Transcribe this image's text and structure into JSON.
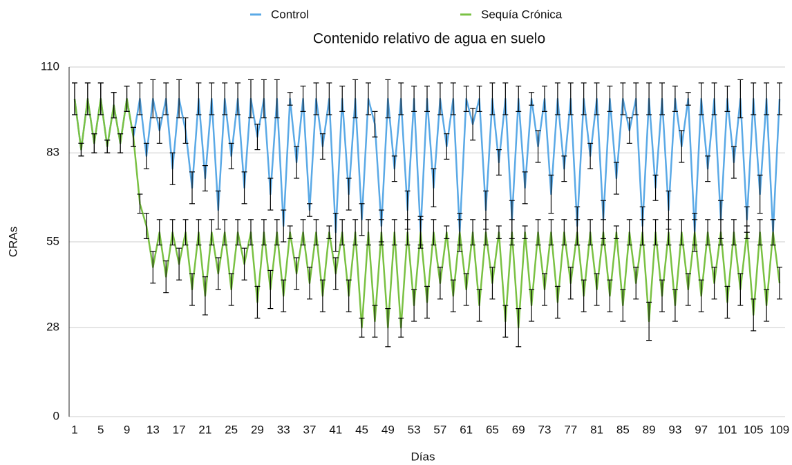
{
  "chart_data": {
    "type": "line",
    "title": "Contenido relativo de agua en suelo",
    "ylabel": "CRAs",
    "xlabel": "Días",
    "categories": [
      1,
      null,
      null,
      null,
      5,
      null,
      null,
      null,
      9,
      null,
      null,
      null,
      13,
      null,
      null,
      null,
      17,
      null,
      null,
      null,
      21,
      null,
      null,
      null,
      25,
      null,
      null,
      null,
      29,
      null,
      null,
      null,
      33,
      null,
      null,
      null,
      37,
      null,
      null,
      null,
      41,
      null,
      null,
      null,
      45,
      null,
      null,
      null,
      49,
      null,
      null,
      null,
      53,
      null,
      null,
      null,
      57,
      null,
      null,
      null,
      61,
      null,
      null,
      null,
      65,
      null,
      null,
      null,
      69,
      null,
      null,
      null,
      73,
      null,
      null,
      null,
      77,
      null,
      null,
      null,
      81,
      null,
      null,
      null,
      85,
      null,
      null,
      null,
      89,
      null,
      null,
      null,
      93,
      null,
      null,
      null,
      97,
      null,
      null,
      null,
      101,
      null,
      null,
      null,
      105,
      null,
      null,
      null,
      109
    ],
    "ylim": [
      0,
      110
    ],
    "yticks": [
      0,
      28,
      55,
      83,
      110
    ],
    "grid": true,
    "legend": "top",
    "series": [
      {
        "name": "Control",
        "color": "#5aa9e6",
        "values": [
          100,
          84,
          100,
          86,
          100,
          85,
          98,
          86,
          100,
          88,
          100,
          82,
          100,
          90,
          100,
          78,
          100,
          90,
          72,
          100,
          75,
          100,
          65,
          100,
          82,
          100,
          72,
          100,
          88,
          100,
          70,
          100,
          60,
          100,
          80,
          100,
          65,
          100,
          85,
          100,
          58,
          100,
          70,
          100,
          62,
          100,
          92,
          60,
          100,
          78,
          100,
          65,
          100,
          58,
          100,
          72,
          100,
          85,
          100,
          58,
          100,
          92,
          100,
          65,
          100,
          80,
          100,
          62,
          100,
          72,
          100,
          85,
          100,
          70,
          100,
          78,
          100,
          60,
          100,
          82,
          100,
          62,
          100,
          75,
          100,
          90,
          100,
          60,
          100,
          72,
          100,
          65,
          100,
          85,
          100,
          58,
          100,
          78,
          100,
          62,
          100,
          80,
          100,
          62,
          100,
          70,
          100,
          58,
          100
        ],
        "errors": [
          5,
          2,
          5,
          3,
          5,
          2,
          4,
          3,
          4,
          3,
          5,
          4,
          6,
          4,
          5,
          5,
          6,
          4,
          5,
          5,
          4,
          5,
          6,
          5,
          4,
          5,
          5,
          6,
          4,
          6,
          5,
          6,
          5,
          2,
          5,
          4,
          2,
          5,
          4,
          5,
          6,
          4,
          5,
          6,
          5,
          5,
          4,
          5,
          6,
          4,
          5,
          6,
          4,
          5,
          4,
          6,
          5,
          4,
          5,
          6,
          4,
          5,
          4,
          6,
          5,
          4,
          5,
          6,
          4,
          5,
          2,
          5,
          4,
          6,
          5,
          4,
          5,
          6,
          5,
          4,
          5,
          6,
          4,
          5,
          5,
          4,
          5,
          6,
          5,
          4,
          5,
          6,
          4,
          5,
          2,
          6,
          5,
          4,
          5,
          6,
          4,
          5,
          6,
          4,
          5,
          6,
          5,
          4,
          5
        ]
      },
      {
        "name": "Sequía Crónica",
        "color": "#7ac143",
        "values": [
          100,
          84,
          100,
          86,
          100,
          85,
          98,
          86,
          100,
          88,
          67,
          60,
          47,
          58,
          44,
          58,
          48,
          58,
          40,
          58,
          38,
          58,
          45,
          58,
          40,
          58,
          48,
          58,
          36,
          58,
          40,
          58,
          38,
          58,
          45,
          58,
          42,
          58,
          38,
          58,
          45,
          58,
          38,
          58,
          28,
          58,
          30,
          58,
          28,
          58,
          28,
          58,
          35,
          58,
          36,
          58,
          42,
          58,
          38,
          58,
          40,
          58,
          35,
          58,
          42,
          58,
          30,
          58,
          28,
          58,
          35,
          58,
          40,
          58,
          36,
          58,
          42,
          58,
          38,
          58,
          40,
          58,
          38,
          58,
          35,
          58,
          42,
          58,
          30,
          58,
          38,
          58,
          35,
          58,
          40,
          58,
          38,
          58,
          42,
          58,
          36,
          58,
          40,
          58,
          32,
          58,
          35,
          58,
          42
        ],
        "errors": [
          5,
          2,
          5,
          3,
          5,
          2,
          4,
          3,
          4,
          3,
          3,
          4,
          5,
          4,
          5,
          4,
          5,
          4,
          5,
          4,
          6,
          4,
          5,
          4,
          5,
          4,
          5,
          4,
          5,
          4,
          6,
          4,
          5,
          2,
          5,
          4,
          5,
          4,
          5,
          2,
          5,
          4,
          5,
          4,
          3,
          4,
          5,
          4,
          6,
          4,
          3,
          4,
          5,
          4,
          5,
          4,
          5,
          2,
          5,
          4,
          5,
          4,
          5,
          4,
          5,
          2,
          5,
          4,
          6,
          2,
          5,
          4,
          5,
          4,
          5,
          4,
          5,
          4,
          5,
          4,
          5,
          4,
          5,
          2,
          5,
          4,
          5,
          4,
          6,
          4,
          5,
          4,
          5,
          4,
          5,
          4,
          5,
          4,
          5,
          4,
          5,
          4,
          5,
          2,
          5,
          4,
          5,
          4,
          5
        ]
      }
    ]
  }
}
